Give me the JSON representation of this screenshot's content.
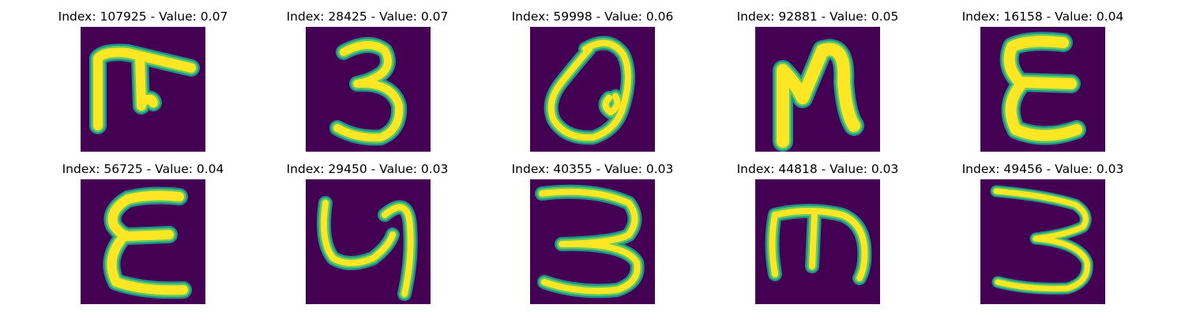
{
  "colors": {
    "background": "#440154",
    "stroke_edge": "#21918c",
    "stroke_mid": "#5ec962",
    "stroke_core": "#fde725"
  },
  "panels": [
    {
      "index": "107925",
      "value": "0.07",
      "title": "Index: 107925 - Value: 0.07",
      "glyph": "stroke-shape-1"
    },
    {
      "index": "28425",
      "value": "0.07",
      "title": "Index: 28425 - Value: 0.07",
      "glyph": "digit-3"
    },
    {
      "index": "59998",
      "value": "0.06",
      "title": "Index: 59998 - Value: 0.06",
      "glyph": "loop-shape"
    },
    {
      "index": "92881",
      "value": "0.05",
      "title": "Index: 92881 - Value: 0.05",
      "glyph": "n-shape"
    },
    {
      "index": "16158",
      "value": "0.04",
      "title": "Index: 16158 - Value: 0.04",
      "glyph": "e-shape"
    },
    {
      "index": "56725",
      "value": "0.04",
      "title": "Index: 56725 - Value: 0.04",
      "glyph": "e-shape"
    },
    {
      "index": "29450",
      "value": "0.03",
      "title": "Index: 29450 - Value: 0.03",
      "glyph": "y-shape"
    },
    {
      "index": "40355",
      "value": "0.03",
      "title": "Index: 40355 - Value: 0.03",
      "glyph": "digit-3"
    },
    {
      "index": "44818",
      "value": "0.03",
      "title": "Index: 44818 - Value: 0.03",
      "glyph": "m-shape"
    },
    {
      "index": "49456",
      "value": "0.03",
      "title": "Index: 49456 - Value: 0.03",
      "glyph": "digit-3"
    }
  ]
}
